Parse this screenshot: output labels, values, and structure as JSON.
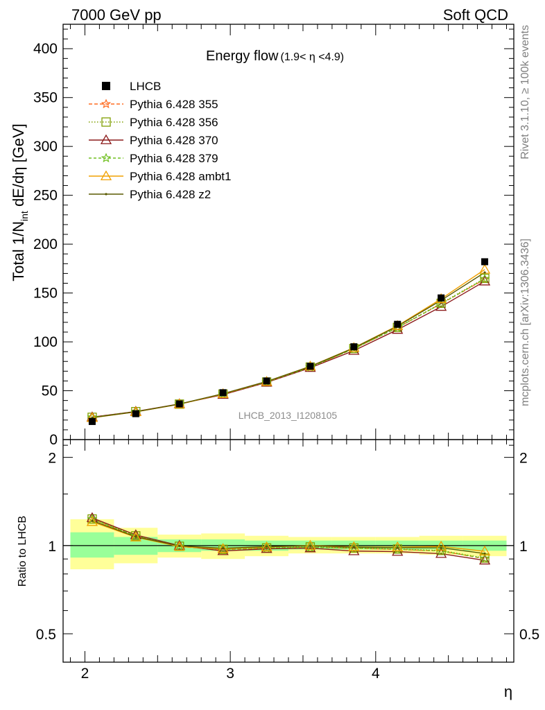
{
  "header": {
    "energy": "7000 GeV pp",
    "process": "Soft QCD"
  },
  "side": {
    "rivet": "Rivet 3.1.10, ≥ 100k events",
    "mcplots": "mcplots.cern.ch [arXiv:1306.3436]"
  },
  "chart_data": {
    "type": "line",
    "title": "Energy flow",
    "title_range": "(1.9< η <4.9)",
    "analysis": "LHCB_2013_I1208105",
    "xlabel": "η",
    "ylabel": "Total 1/N",
    "ylabel_sub": "int",
    "ylabel_rest": " dE/dη [GeV]",
    "ratio_ylabel": "Ratio to LHCB",
    "xlim": [
      1.85,
      4.95
    ],
    "ylim": [
      0,
      425
    ],
    "ratio_ylim": [
      0.4,
      2.3
    ],
    "xticks": [
      2,
      3,
      4
    ],
    "yticks": [
      0,
      50,
      100,
      150,
      200,
      250,
      300,
      350,
      400
    ],
    "ratio_yticks": [
      0.5,
      1,
      2
    ],
    "x": [
      2.05,
      2.35,
      2.65,
      2.95,
      3.25,
      3.55,
      3.85,
      4.15,
      4.45,
      4.75
    ],
    "x_edges": [
      1.9,
      2.2,
      2.5,
      2.8,
      3.1,
      3.4,
      3.7,
      4.0,
      4.3,
      4.6,
      4.9
    ],
    "data": {
      "name": "LHCB",
      "values": [
        18.5,
        26.5,
        36.5,
        48.0,
        60.0,
        75.0,
        95.0,
        118.0,
        145.0,
        182.0
      ],
      "band_inner": [
        [
          0.91,
          1.11
        ],
        [
          0.93,
          1.07
        ],
        [
          0.95,
          1.05
        ],
        [
          0.96,
          1.05
        ],
        [
          0.96,
          1.04
        ],
        [
          0.97,
          1.04
        ],
        [
          0.97,
          1.04
        ],
        [
          0.97,
          1.04
        ],
        [
          0.97,
          1.04
        ],
        [
          0.96,
          1.04
        ]
      ],
      "band_outer": [
        [
          0.83,
          1.23
        ],
        [
          0.87,
          1.15
        ],
        [
          0.91,
          1.09
        ],
        [
          0.9,
          1.1
        ],
        [
          0.92,
          1.08
        ],
        [
          0.94,
          1.07
        ],
        [
          0.94,
          1.07
        ],
        [
          0.94,
          1.07
        ],
        [
          0.93,
          1.08
        ],
        [
          0.92,
          1.08
        ]
      ]
    },
    "series": [
      {
        "name": "Pythia 6.428 355",
        "color": "#ff6a1f",
        "marker": "star",
        "dash": "5,3",
        "values": [
          22.8,
          28.5,
          36.2,
          46.5,
          58.8,
          74.0,
          93.0,
          114.5,
          139.0,
          164.0
        ]
      },
      {
        "name": "Pythia 6.428 356",
        "color": "#7f9f00",
        "marker": "square",
        "dash": "1.5,2.5",
        "values": [
          22.8,
          28.6,
          36.3,
          46.6,
          58.9,
          74.2,
          93.2,
          114.8,
          139.5,
          165.0
        ]
      },
      {
        "name": "Pythia 6.428 370",
        "color": "#8b1a1a",
        "marker": "triangle",
        "dash": "",
        "values": [
          23.0,
          28.8,
          36.5,
          46.0,
          58.5,
          73.5,
          91.0,
          112.5,
          136.0,
          162.0
        ]
      },
      {
        "name": "Pythia 6.428 379",
        "color": "#6fbf1f",
        "marker": "star",
        "dash": "4,3",
        "values": [
          22.8,
          28.6,
          36.3,
          46.6,
          58.9,
          74.0,
          93.0,
          114.5,
          139.0,
          164.5
        ]
      },
      {
        "name": "Pythia 6.428 ambt1",
        "color": "#f0a000",
        "marker": "triangle",
        "dash": "",
        "values": [
          22.3,
          28.3,
          36.2,
          46.8,
          59.3,
          75.0,
          94.0,
          116.5,
          144.0,
          174.0
        ]
      },
      {
        "name": "Pythia 6.428 z2",
        "color": "#5a5a00",
        "marker": "dot",
        "dash": "",
        "values": [
          22.5,
          28.4,
          36.4,
          47.0,
          59.5,
          74.8,
          93.8,
          116.0,
          142.5,
          171.0
        ]
      }
    ]
  }
}
